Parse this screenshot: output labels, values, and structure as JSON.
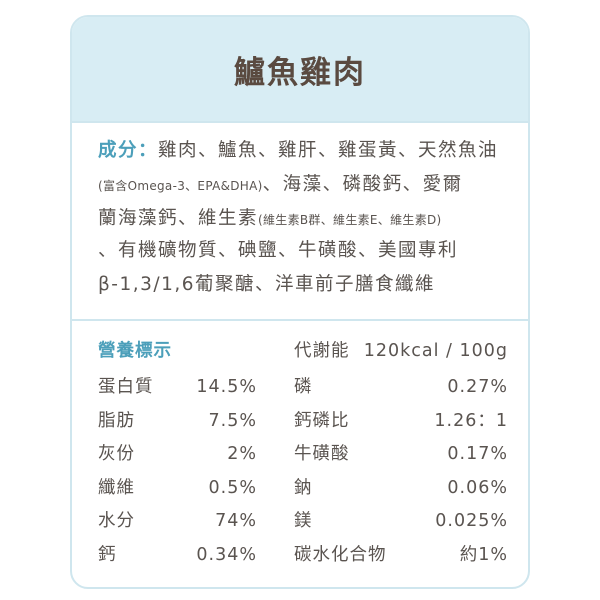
{
  "header": {
    "title": "鱸魚雞肉"
  },
  "ingredients": {
    "label": "成分：",
    "lines": [
      [
        "雞肉、鱸魚、雞肝、雞蛋黃、天然魚油"
      ],
      [
        "(富含Omega-3、EPA&DHA)",
        "、海藻、磷酸鈣、愛爾"
      ],
      [
        "蘭海藻鈣、維生素",
        "(維生素B群、維生素E、維生素D)"
      ],
      [
        "、有機礦物質、碘鹽、牛磺酸、美國專利"
      ],
      [
        "β-1,3/1,6葡聚醣、洋車前子膳食纖維"
      ]
    ]
  },
  "nutrition": {
    "title": "營養標示",
    "energy_label": "代謝能",
    "energy_value": "120kcal / 100g",
    "rows": [
      [
        [
          "蛋白質",
          "14.5%"
        ],
        [
          "磷",
          "0.27%"
        ]
      ],
      [
        [
          "脂肪",
          "7.5%"
        ],
        [
          "鈣磷比",
          "1.26：1"
        ]
      ],
      [
        [
          "灰份",
          "2%"
        ],
        [
          "牛磺酸",
          "0.17%"
        ]
      ],
      [
        [
          "纖維",
          "0.5%"
        ],
        [
          "鈉",
          "0.06%"
        ]
      ],
      [
        [
          "水分",
          "74%"
        ],
        [
          "鎂",
          "0.025%"
        ]
      ],
      [
        [
          "鈣",
          "0.34%"
        ],
        [
          "碳水化合物",
          "約1%"
        ]
      ]
    ]
  }
}
